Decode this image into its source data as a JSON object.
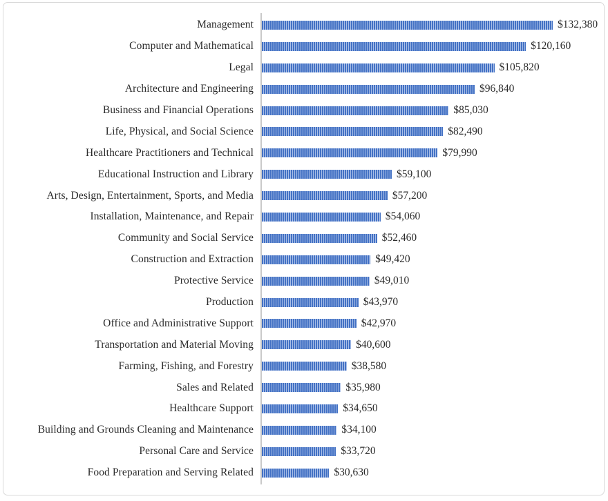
{
  "colors": {
    "bar_primary": "#4472C4",
    "bar_stripe_light": "#A9BFE8",
    "axis_line": "#C9C9C9",
    "card_border": "#D9D9D9",
    "text": "#2B2B2B"
  },
  "chart_data": {
    "type": "bar",
    "orientation": "horizontal",
    "title": "",
    "xlabel": "",
    "ylabel": "",
    "legend": "none",
    "grid": "off",
    "bar_pattern": "vertical-stripes",
    "categories": [
      "Management",
      "Computer and Mathematical",
      "Legal",
      "Architecture and Engineering",
      "Business and Financial Operations",
      "Life, Physical, and Social Science",
      "Healthcare Practitioners and Technical",
      "Educational Instruction and Library",
      "Arts, Design, Entertainment, Sports, and Media",
      "Installation, Maintenance, and Repair",
      "Community and Social Service",
      "Construction and Extraction",
      "Protective Service",
      "Production",
      "Office and Administrative Support",
      "Transportation and Material Moving",
      "Farming, Fishing, and Forestry",
      "Sales and Related",
      "Healthcare Support",
      "Building and Grounds Cleaning and Maintenance",
      "Personal Care and Service",
      "Food Preparation and Serving Related"
    ],
    "values": [
      132380,
      120160,
      105820,
      96840,
      85030,
      82490,
      79990,
      59100,
      57200,
      54060,
      52460,
      49420,
      49010,
      43970,
      42970,
      40600,
      38580,
      35980,
      34650,
      34100,
      33720,
      30630
    ],
    "value_labels": [
      "$132,380",
      "$120,160",
      "$105,820",
      "$96,840",
      "$85,030",
      "$82,490",
      "$79,990",
      "$59,100",
      "$57,200",
      "$54,060",
      "$52,460",
      "$49,420",
      "$49,010",
      "$43,970",
      "$42,970",
      "$40,600",
      "$38,580",
      "$35,980",
      "$34,650",
      "$34,100",
      "$33,720",
      "$30,630"
    ]
  }
}
